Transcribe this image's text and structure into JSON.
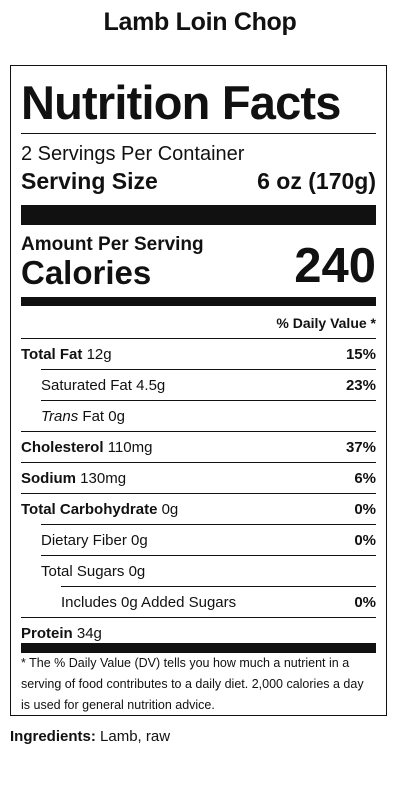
{
  "product": {
    "title": "Lamb Loin Chop"
  },
  "label": {
    "heading": "Nutrition Facts",
    "servings_per_container": "2 Servings Per Container",
    "serving_size_label": "Serving Size",
    "serving_size_value": "6 oz (170g)",
    "amount_per_serving": "Amount Per Serving",
    "calories_label": "Calories",
    "calories_value": "240",
    "dv_header": "% Daily Value *",
    "nutrients": [
      {
        "name": "Total Fat",
        "amount": "12g",
        "dv": "15%"
      },
      {
        "name": "Saturated Fat",
        "amount": "4.5g",
        "dv": "23%"
      },
      {
        "name_italic": "Trans",
        "name_rest": " Fat",
        "amount": "0g",
        "dv": ""
      },
      {
        "name": "Cholesterol",
        "amount": "110mg",
        "dv": "37%"
      },
      {
        "name": "Sodium",
        "amount": "130mg",
        "dv": "6%"
      },
      {
        "name": "Total Carbohydrate",
        "amount": "0g",
        "dv": "0%"
      },
      {
        "name": "Dietary Fiber",
        "amount": "0g",
        "dv": "0%"
      },
      {
        "name": "Total Sugars",
        "amount": "0g",
        "dv": ""
      },
      {
        "name": "Includes 0g Added Sugars",
        "amount": "",
        "dv": "0%"
      },
      {
        "name": "Protein",
        "amount": "34g",
        "dv": ""
      }
    ],
    "footnote": "* The % Daily Value (DV) tells you how much a nutrient in a serving of food contributes to a daily diet. 2,000 calories a day is used for general nutrition advice."
  },
  "ingredients": {
    "label": "Ingredients:",
    "value": "Lamb, raw"
  }
}
